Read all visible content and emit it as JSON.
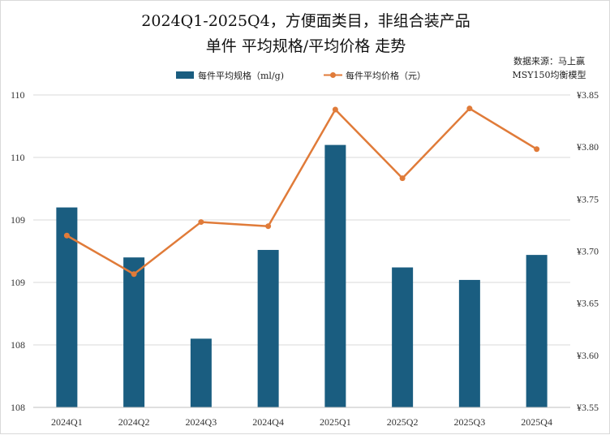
{
  "chart_data": {
    "type": "bar",
    "title": "2024Q1-2025Q4，方便面类目，非组合装产品",
    "subtitle": "单件 平均规格/平均价格 走势",
    "source_lines": [
      "数据来源：马上赢",
      "MSY150均衡模型"
    ],
    "categories": [
      "2024Q1",
      "2024Q2",
      "2024Q3",
      "2024Q4",
      "2025Q1",
      "2025Q2",
      "2025Q3",
      "2025Q4"
    ],
    "series": [
      {
        "name": "每件平均规格（ml/g)",
        "type": "bar",
        "axis": "left",
        "color": "#1a5d80",
        "values": [
          109.1,
          108.7,
          108.05,
          108.76,
          109.6,
          108.62,
          108.52,
          108.72
        ]
      },
      {
        "name": "每件平均价格（元）",
        "type": "line",
        "axis": "right",
        "color": "#e07b39",
        "values": [
          3.715,
          3.678,
          3.728,
          3.724,
          3.836,
          3.77,
          3.837,
          3.798
        ]
      }
    ],
    "y_left": {
      "ylim": [
        107.5,
        110
      ],
      "ticks": [
        107.5,
        108,
        108.5,
        109,
        109.5,
        110
      ],
      "tick_labels": [
        "108",
        "108",
        "109",
        "109",
        "110",
        "110"
      ]
    },
    "y_right": {
      "ylim": [
        3.55,
        3.85
      ],
      "ticks": [
        3.55,
        3.6,
        3.65,
        3.7,
        3.75,
        3.8,
        3.85
      ],
      "tick_labels": [
        "¥3.55",
        "¥3.60",
        "¥3.65",
        "¥3.70",
        "¥3.75",
        "¥3.80",
        "¥3.85"
      ]
    },
    "grid": true,
    "legend_position": "top-center"
  }
}
